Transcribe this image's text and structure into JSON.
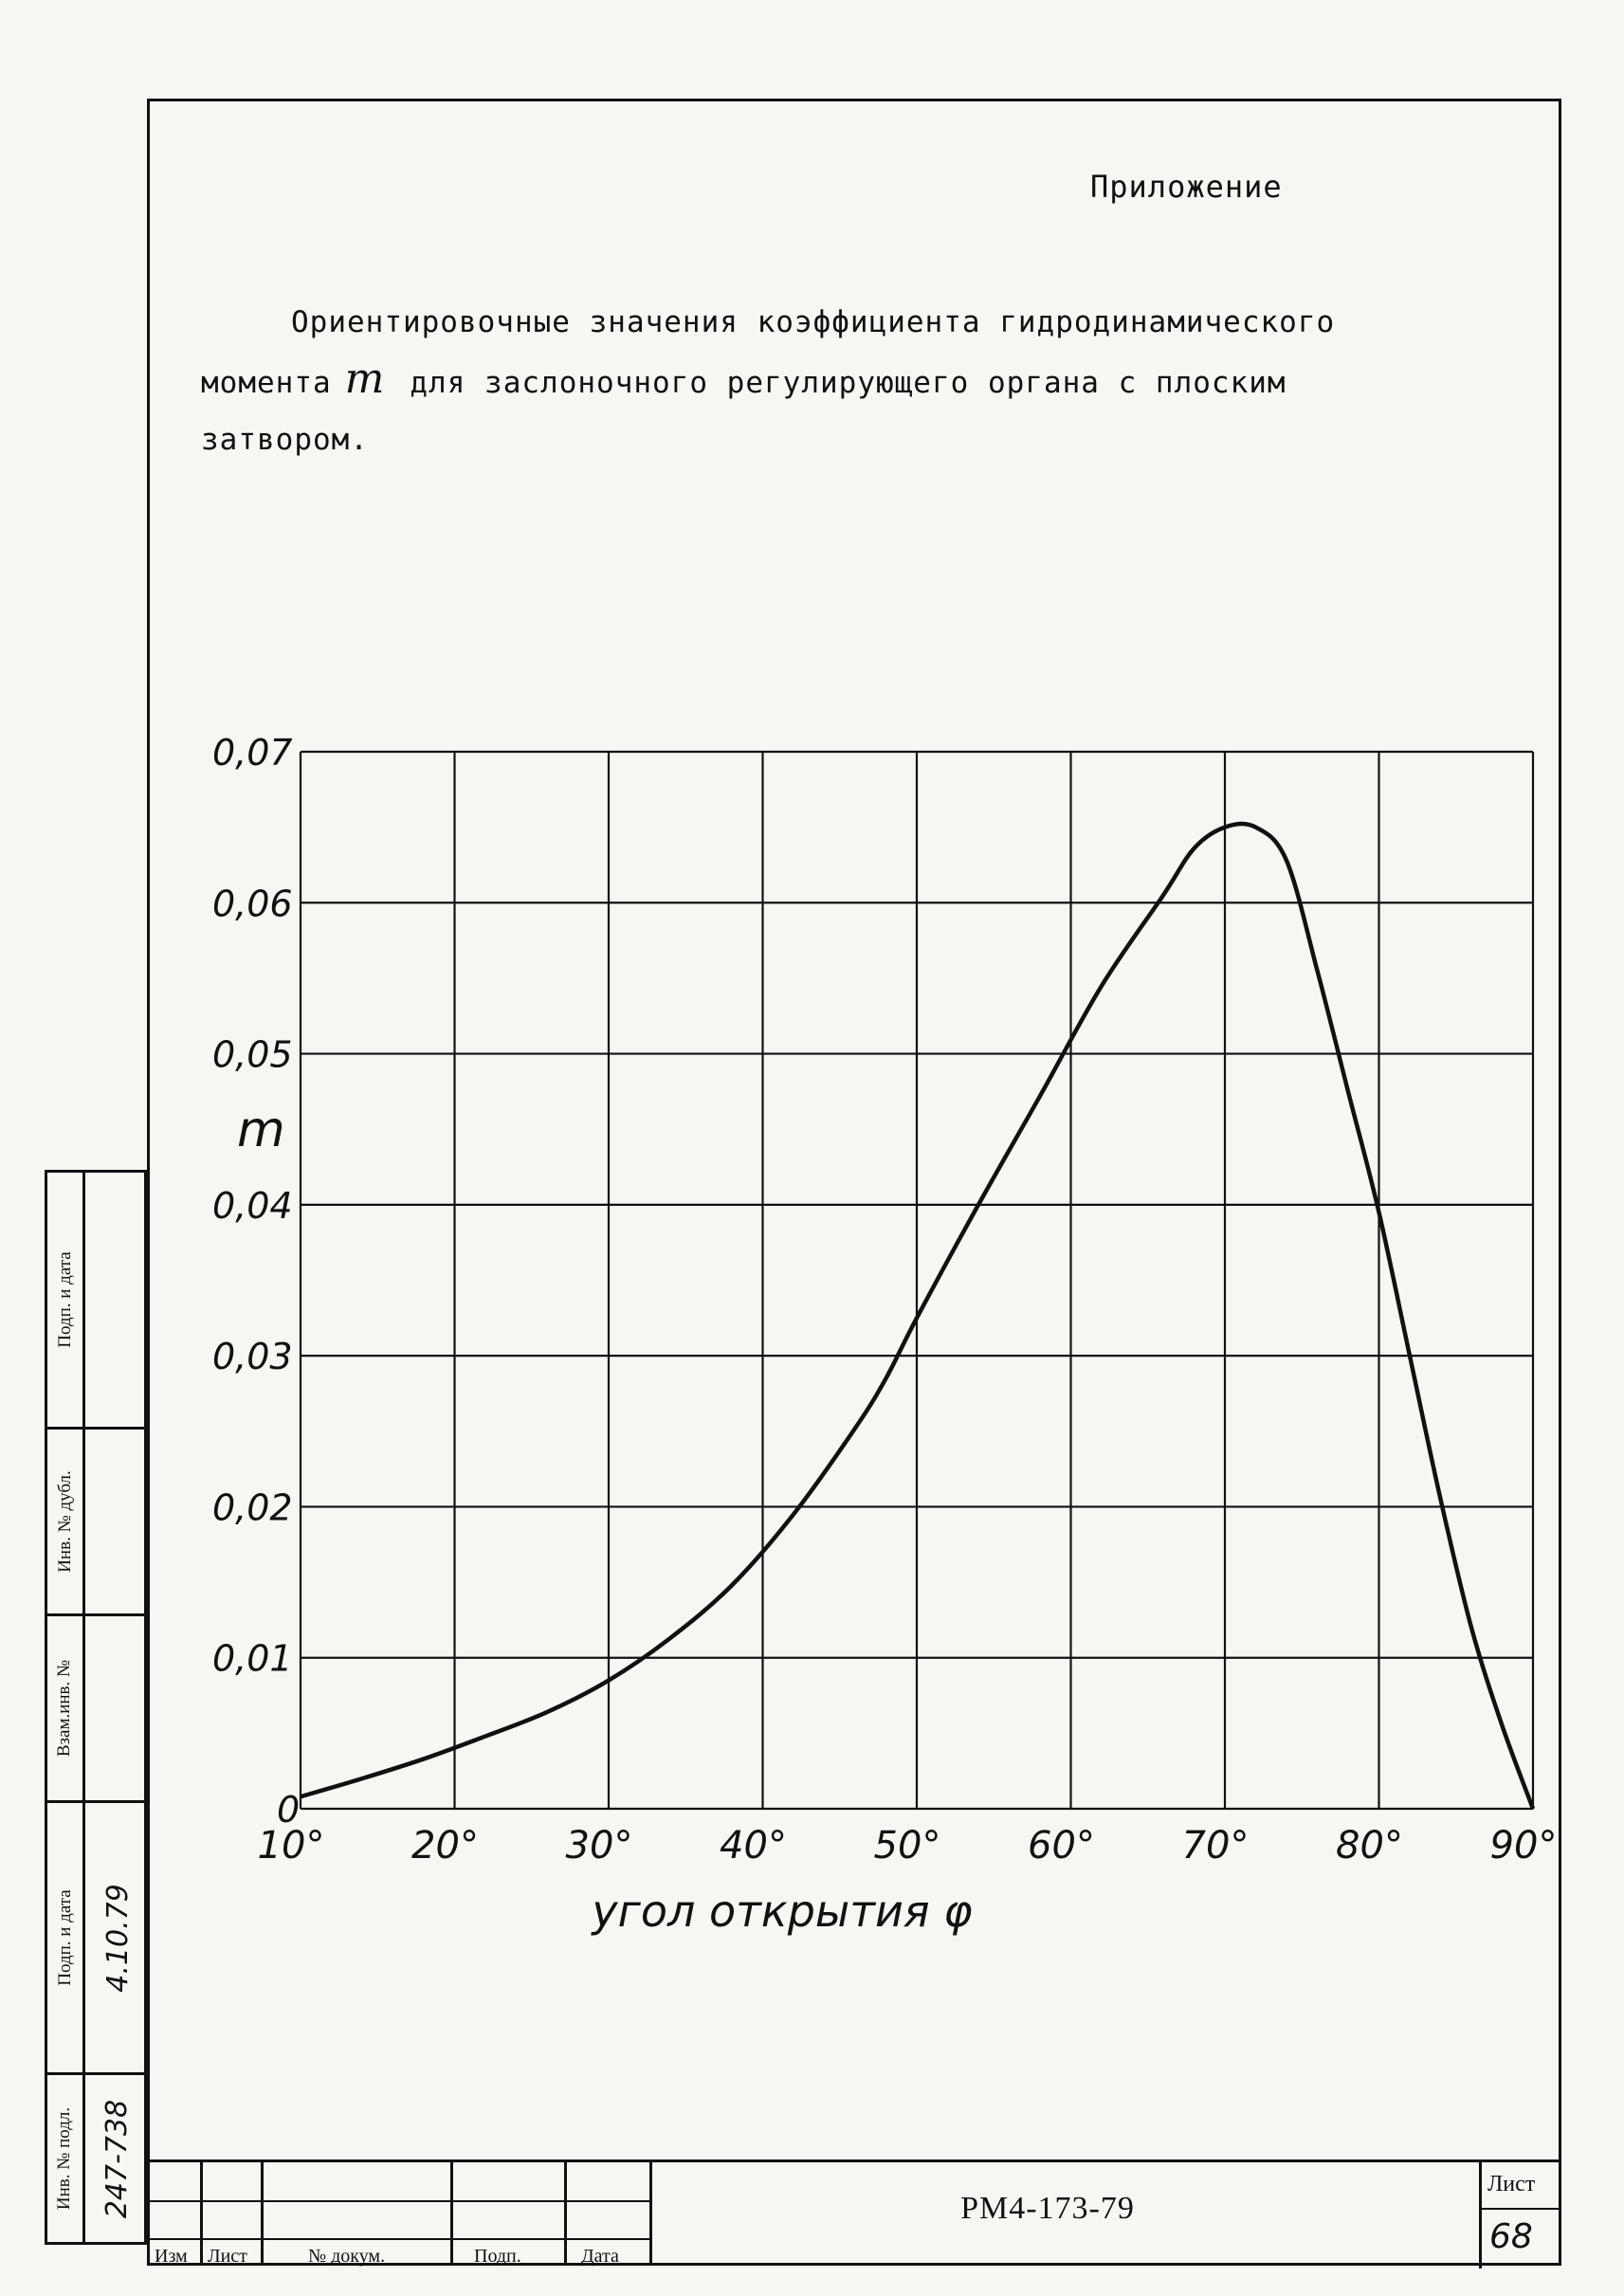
{
  "page": {
    "heading": "Приложение",
    "paragraph": {
      "line1": "Ориентировочные значения коэффициента гидродинамического",
      "line2_before": "момента",
      "symbol": "m",
      "line2_after": "для заслоночного регулирующего органа с плоским",
      "line3": "затвором."
    }
  },
  "chart_data": {
    "type": "line",
    "title": "",
    "xlabel": "угол открытия φ",
    "ylabel": "m",
    "xlim": [
      10,
      90
    ],
    "ylim": [
      0,
      0.07
    ],
    "x_ticks": [
      "10°",
      "20°",
      "30°",
      "40°",
      "50°",
      "60°",
      "70°",
      "80°",
      "90°"
    ],
    "y_ticks": [
      "0",
      "0,01",
      "0,02",
      "0,03",
      "0,04",
      "0,05",
      "0,06",
      "0,07"
    ],
    "grid": true,
    "series": [
      {
        "x": [
          10,
          14,
          18,
          22,
          26,
          30,
          34,
          38,
          42,
          46,
          48,
          50,
          54,
          58,
          62,
          66,
          68,
          70,
          72,
          74,
          76,
          78,
          80,
          82,
          84,
          86,
          88,
          90
        ],
        "y": [
          0.0008,
          0.002,
          0.0033,
          0.0048,
          0.0064,
          0.0085,
          0.0113,
          0.0148,
          0.0195,
          0.0252,
          0.0285,
          0.0325,
          0.04,
          0.0472,
          0.0545,
          0.0605,
          0.0636,
          0.065,
          0.065,
          0.0628,
          0.0555,
          0.0475,
          0.0395,
          0.03,
          0.0205,
          0.012,
          0.0055,
          0.0
        ]
      }
    ]
  },
  "side_stamp": {
    "cells": [
      {
        "label": "Подп. и дата",
        "value": ""
      },
      {
        "label": "Инв. № дубл.",
        "value": ""
      },
      {
        "label": "Взам.инв. №",
        "value": ""
      },
      {
        "label": "Подп. и дата",
        "value": "4.10.79"
      },
      {
        "label": "Инв. № подл.",
        "value": "247-738"
      }
    ]
  },
  "title_block": {
    "headers": [
      "Изм",
      "Лист",
      "№ докум.",
      "Подп.",
      "Дата"
    ],
    "document_code": "РМ4-173-79",
    "sheet_label": "Лист",
    "sheet_number": "68"
  }
}
